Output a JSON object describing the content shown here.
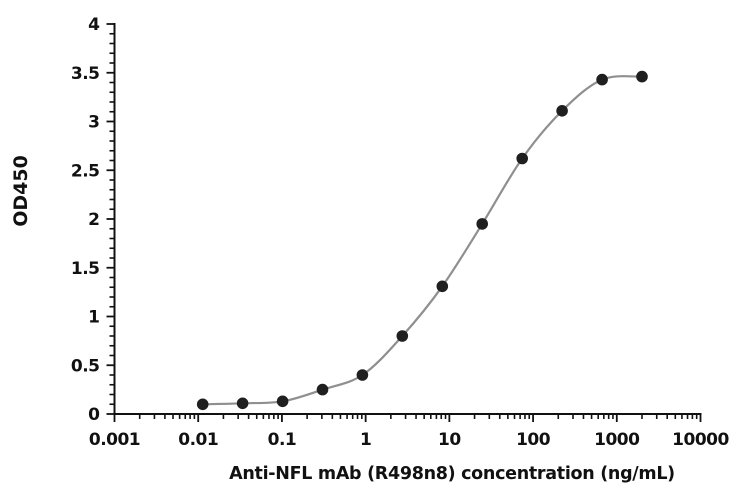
{
  "chart_data": {
    "type": "scatter",
    "title": "",
    "xlabel": "Anti-NFL mAb (R498n8) concentration (ng/mL)",
    "ylabel": "OD450",
    "x_scale": "log10",
    "xlim": [
      0.001,
      10000
    ],
    "ylim": [
      0,
      4
    ],
    "x_tick_values": [
      0.001,
      0.01,
      0.1,
      1,
      10,
      100,
      1000,
      10000
    ],
    "x_tick_labels": [
      "0.001",
      "0.01",
      "0.1",
      "1",
      "10",
      "100",
      "1000",
      "10000"
    ],
    "y_tick_values": [
      0,
      0.5,
      1,
      1.5,
      2,
      2.5,
      3,
      3.5,
      4
    ],
    "y_tick_labels": [
      "0",
      "0.5",
      "1",
      "1.5",
      "2",
      "2.5",
      "3",
      "3.5",
      "4"
    ],
    "y_minor_step": 0.1,
    "grid": false,
    "legend": "none",
    "series": [
      {
        "x": [
          0.0113,
          0.0339,
          0.102,
          0.305,
          0.914,
          2.74,
          8.23,
          24.7,
          74.1,
          222,
          667,
          2000
        ],
        "y": [
          0.1,
          0.11,
          0.13,
          0.25,
          0.4,
          0.8,
          1.31,
          1.95,
          2.62,
          3.11,
          3.43,
          3.46
        ]
      }
    ]
  },
  "colors": {
    "background": "#ffffff",
    "axis": "#111111",
    "curve": "#8f8f8f",
    "marker": "#1f1f1f"
  }
}
